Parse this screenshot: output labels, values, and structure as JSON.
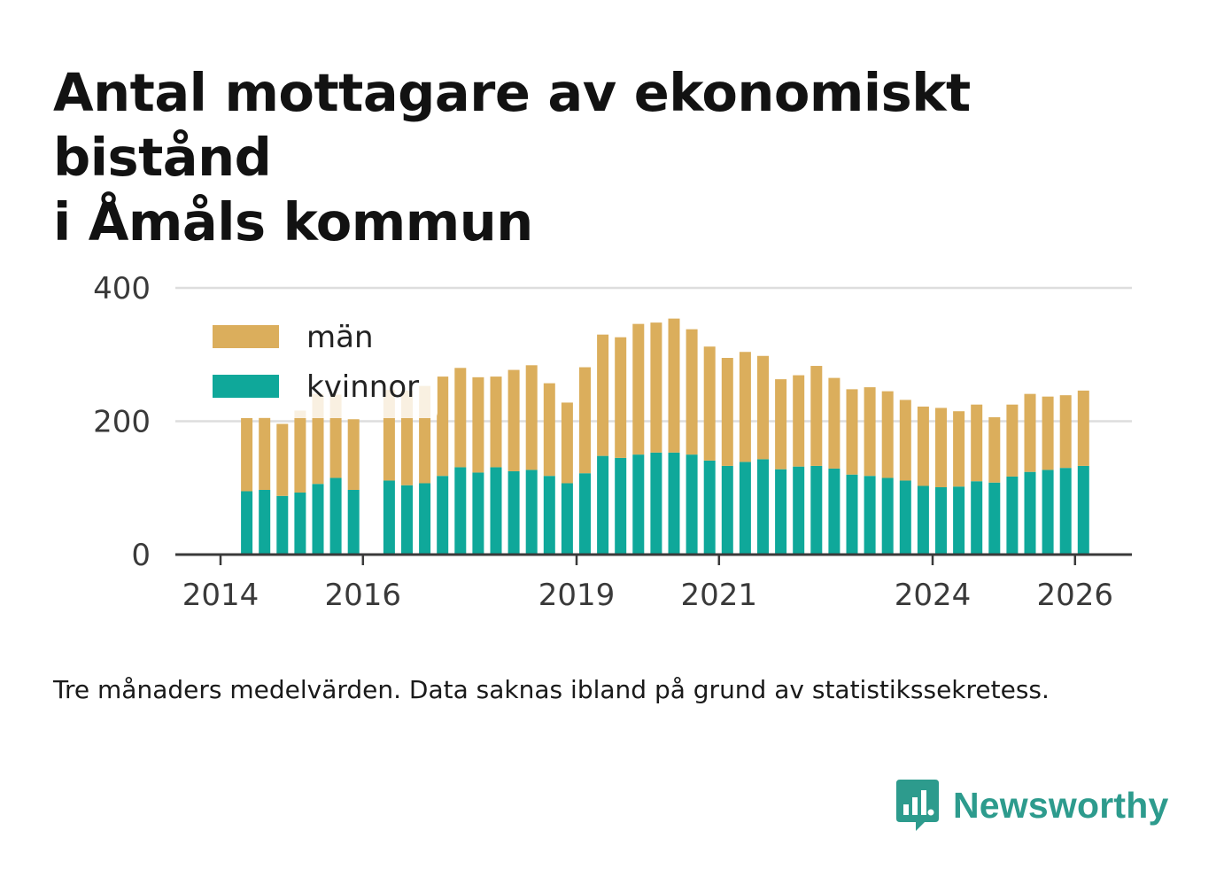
{
  "title_lines": [
    "Antal mottagare av ekonomiskt bistånd",
    "i Åmåls kommun"
  ],
  "note": "Tre månaders medelvärden. Data saknas ibland på grund av statistikssekretess.",
  "brand": {
    "name": "Newsworthy",
    "icon": "newsworthy-chart-bubble-icon",
    "color": "#2d9b8d"
  },
  "chart_data": {
    "type": "bar",
    "stacked": true,
    "title": "Antal mottagare av ekonomiskt bistånd i Åmåls kommun",
    "xlabel": "",
    "ylabel": "",
    "ylim": [
      0,
      400
    ],
    "yticks": [
      0,
      200,
      400
    ],
    "xticks": [
      {
        "label": "2014",
        "index": 0
      },
      {
        "label": "2016",
        "index": 8
      },
      {
        "label": "2019",
        "index": 20
      },
      {
        "label": "2021",
        "index": 28
      },
      {
        "label": "2024",
        "index": 40
      },
      {
        "label": "2026",
        "index": 48
      }
    ],
    "grid": true,
    "legend_position": "top-left",
    "series": [
      {
        "name": "kvinnor",
        "color": "#0fa89a",
        "values": [
          null,
          95,
          97,
          88,
          93,
          106,
          115,
          97,
          null,
          111,
          104,
          107,
          118,
          131,
          123,
          131,
          125,
          127,
          118,
          107,
          122,
          148,
          145,
          150,
          153,
          153,
          150,
          141,
          133,
          139,
          143,
          128,
          132,
          133,
          129,
          120,
          118,
          115,
          111,
          103,
          101,
          102,
          110,
          108,
          117,
          124,
          127,
          130,
          133
        ]
      },
      {
        "name": "män",
        "color": "#dbae5c",
        "values": [
          null,
          110,
          109,
          108,
          123,
          135,
          125,
          106,
          null,
          136,
          142,
          146,
          149,
          149,
          143,
          136,
          152,
          157,
          139,
          121,
          159,
          182,
          181,
          196,
          195,
          201,
          188,
          171,
          162,
          165,
          155,
          135,
          137,
          150,
          136,
          128,
          133,
          130,
          121,
          119,
          119,
          113,
          115,
          98,
          108,
          117,
          110,
          109,
          113
        ]
      }
    ]
  }
}
